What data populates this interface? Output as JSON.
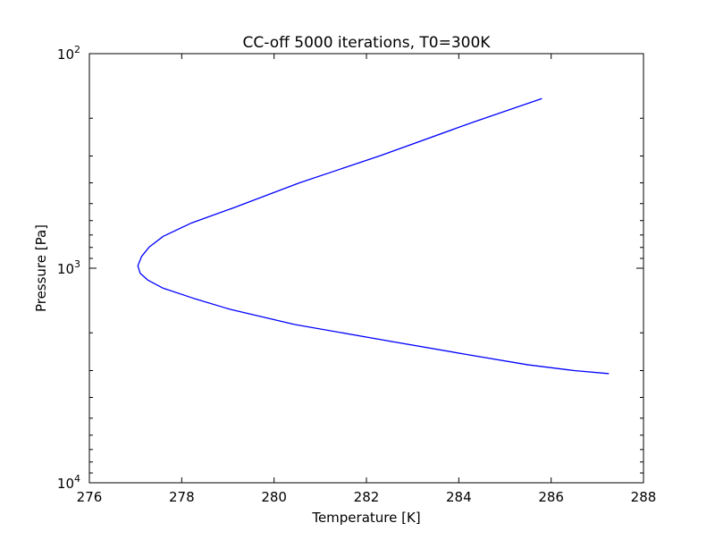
{
  "chart_data": {
    "type": "line",
    "title": "CC-off 5000 iterations, T0=300K",
    "xlabel": "Temperature [K]",
    "ylabel": "Pressure [Pa]",
    "xlim": [
      276,
      288
    ],
    "ylim": [
      10000,
      100
    ],
    "yscale": "log",
    "yaxis_inverted": true,
    "grid": false,
    "x_ticks": [
      {
        "value": 276,
        "label": "276"
      },
      {
        "value": 278,
        "label": "278"
      },
      {
        "value": 280,
        "label": "280"
      },
      {
        "value": 282,
        "label": "282"
      },
      {
        "value": 284,
        "label": "284"
      },
      {
        "value": 286,
        "label": "286"
      },
      {
        "value": 288,
        "label": "288"
      }
    ],
    "y_ticks": [
      {
        "value": 100,
        "base": "10",
        "exp": "2"
      },
      {
        "value": 1000,
        "base": "10",
        "exp": "3"
      },
      {
        "value": 10000,
        "base": "10",
        "exp": "4"
      }
    ],
    "series": [
      {
        "color": "#0000ff",
        "points": [
          [
            285.8,
            162
          ],
          [
            284.3,
            209
          ],
          [
            282.3,
            299
          ],
          [
            280.55,
            400
          ],
          [
            279.1,
            525
          ],
          [
            278.2,
            617
          ],
          [
            277.6,
            710
          ],
          [
            277.3,
            795
          ],
          [
            277.13,
            882
          ],
          [
            277.05,
            975
          ],
          [
            277.1,
            1055
          ],
          [
            277.27,
            1138
          ],
          [
            277.6,
            1240
          ],
          [
            278.25,
            1380
          ],
          [
            279.05,
            1555
          ],
          [
            280.45,
            1830
          ],
          [
            282.3,
            2150
          ],
          [
            284.2,
            2530
          ],
          [
            285.5,
            2820
          ],
          [
            286.5,
            3000
          ],
          [
            287.25,
            3100
          ]
        ]
      }
    ]
  }
}
